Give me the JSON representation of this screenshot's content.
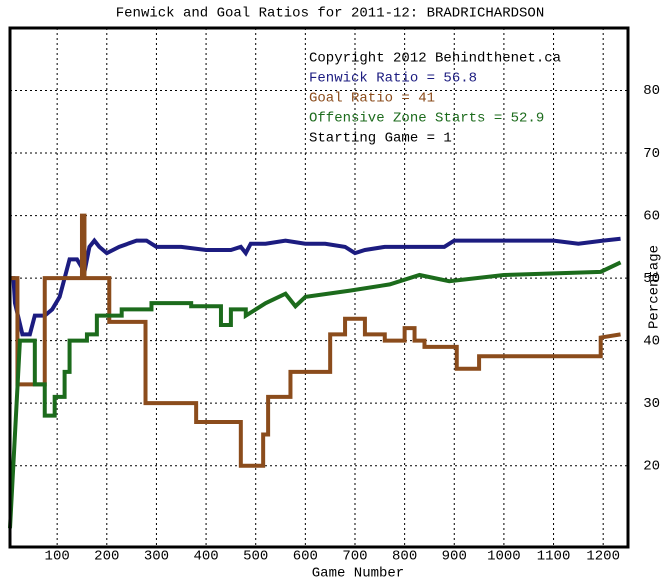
{
  "chart_data": {
    "type": "line",
    "title": "Fenwick and Goal Ratios for 2011-12: BRADRICHARDSON",
    "x_label": "Game Number",
    "y_label": "Percentage",
    "annotations": [
      "Copyright 2012 Behindthenet.ca",
      "Starting Game = 1"
    ],
    "xlim": [
      5,
      1250
    ],
    "ylim": [
      7,
      90
    ],
    "xticks": [
      100,
      200,
      300,
      400,
      500,
      600,
      700,
      800,
      900,
      1000,
      1100,
      1200
    ],
    "yticks": [
      20,
      30,
      40,
      50,
      60,
      70,
      80
    ],
    "grid": true,
    "series": [
      {
        "name": "Fenwick Ratio = 56.8",
        "color": "#1c1c80",
        "x": [
          5,
          12,
          15,
          30,
          45,
          55,
          75,
          90,
          105,
          115,
          125,
          140,
          155,
          165,
          175,
          185,
          200,
          225,
          260,
          280,
          300,
          320,
          350,
          400,
          450,
          470,
          480,
          490,
          520,
          560,
          600,
          640,
          680,
          700,
          720,
          760,
          800,
          840,
          880,
          900,
          950,
          1000,
          1050,
          1100,
          1150,
          1200,
          1235
        ],
        "values": [
          50,
          50,
          46,
          41,
          41,
          44,
          44,
          45,
          47,
          50,
          53,
          53,
          51,
          55,
          56,
          55,
          54,
          55,
          56,
          56,
          55,
          55,
          55,
          54.5,
          54.5,
          55,
          54,
          55.5,
          55.5,
          56,
          55.5,
          55.5,
          55,
          54,
          54.5,
          55,
          55,
          55,
          55,
          56,
          56,
          56,
          56,
          56,
          55.5,
          56,
          56.3
        ]
      },
      {
        "name": "Goal Ratio = 41",
        "color": "#8b4c1c",
        "x": [
          5,
          20,
          20,
          75,
          75,
          150,
          150,
          155,
          155,
          165,
          165,
          205,
          205,
          278,
          278,
          380,
          380,
          470,
          470,
          515,
          515,
          525,
          525,
          540,
          540,
          570,
          570,
          650,
          650,
          680,
          680,
          720,
          720,
          760,
          760,
          800,
          800,
          820,
          820,
          840,
          840,
          905,
          905,
          950,
          950,
          1195,
          1195,
          1235
        ],
        "values": [
          50,
          50,
          33,
          33,
          50,
          50,
          60,
          60,
          50,
          50,
          50,
          50,
          43,
          43,
          30,
          30,
          27,
          27,
          20,
          20,
          25,
          25,
          31,
          31,
          31,
          31,
          35,
          35,
          41,
          41,
          43.5,
          43.5,
          41,
          41,
          40,
          40,
          42,
          42,
          40,
          40,
          39,
          39,
          35.5,
          35.5,
          37.5,
          37.5,
          40.5,
          41
        ]
      },
      {
        "name": "Offensive Zone Starts = 52.9",
        "color": "#1c6b1c",
        "x": [
          5,
          15,
          15,
          25,
          25,
          55,
          55,
          75,
          75,
          95,
          95,
          115,
          115,
          125,
          125,
          160,
          160,
          180,
          180,
          230,
          230,
          290,
          290,
          370,
          370,
          430,
          430,
          450,
          450,
          480,
          480,
          520,
          520,
          560,
          560,
          580,
          580,
          600,
          600,
          690,
          690,
          770,
          770,
          830,
          830,
          890,
          890,
          1000,
          1000,
          1195,
          1195,
          1235
        ],
        "values": [
          10,
          25,
          25,
          40,
          40,
          40,
          33,
          33,
          28,
          28,
          31,
          31,
          35,
          35,
          40,
          40,
          41,
          41,
          44,
          44,
          45,
          45,
          46,
          46,
          45.5,
          45.5,
          42.5,
          42.5,
          45,
          45,
          44,
          46,
          46,
          47.5,
          47.5,
          45.5,
          45.5,
          47,
          47,
          48,
          48,
          49,
          49,
          50.5,
          50.5,
          49.5,
          49.5,
          50.5,
          50.5,
          51,
          51,
          52.5
        ]
      }
    ]
  }
}
